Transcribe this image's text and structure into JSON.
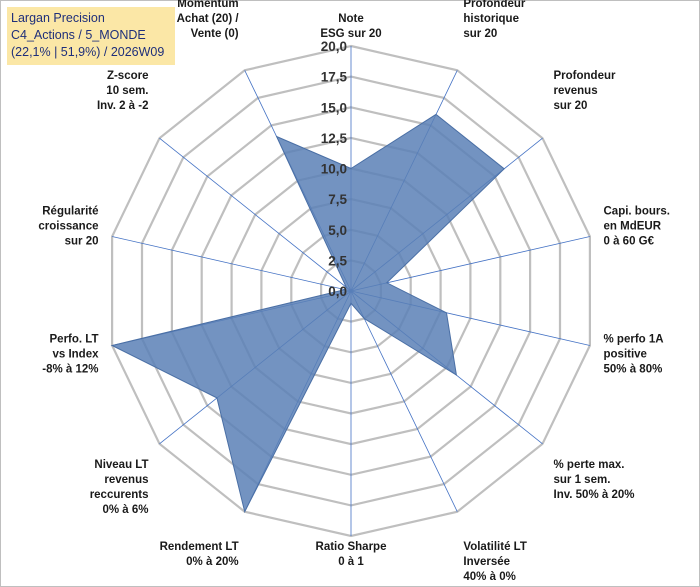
{
  "title_box": {
    "line1": "Largan Precision",
    "line2": "C4_Actions / 5_MONDE",
    "line3": "(22,1% | 51,9%) / 2026W09"
  },
  "chart_data": {
    "type": "radar",
    "title": "Largan Precision",
    "subtitle": "C4_Actions / 5_MONDE (22,1% | 51,9%) / 2026W09",
    "rlim": [
      0,
      20
    ],
    "ticks": [
      "0,0",
      "2,5",
      "5,0",
      "7,5",
      "10,0",
      "12,5",
      "15,0",
      "17,5",
      "20,0"
    ],
    "tick_values": [
      0,
      2.5,
      5,
      7.5,
      10,
      12.5,
      15,
      17.5,
      20
    ],
    "axes": [
      {
        "label": [
          "Note",
          "ESG sur 20"
        ],
        "value": 10
      },
      {
        "label": [
          "Profondeur",
          "historique",
          "sur 20"
        ],
        "value": 16
      },
      {
        "label": [
          "Profondeur",
          "revenus",
          "sur 20"
        ],
        "value": 16
      },
      {
        "label": [
          "Capi. bours.",
          "en MdEUR",
          "0 à 60 G€"
        ],
        "value": 3
      },
      {
        "label": [
          "% perfo 1A",
          "positive",
          "50% à 80%"
        ],
        "value": 8
      },
      {
        "label": [
          "% perte max.",
          "sur 1 sem.",
          "Inv. 50% à 20%"
        ],
        "value": 11
      },
      {
        "label": [
          "Volatilité LT",
          "Inversée",
          "40% à 0%"
        ],
        "value": 2.5
      },
      {
        "label": [
          "Ratio Sharpe",
          "0 à 1"
        ],
        "value": 1
      },
      {
        "label": [
          "Rendement LT",
          "0% à 20%"
        ],
        "value": 20
      },
      {
        "label": [
          "Niveau LT",
          "revenus",
          "reccurents",
          "0% à 6%"
        ],
        "value": 14
      },
      {
        "label": [
          "Perfo. LT",
          "vs Index",
          "-8% à 12%"
        ],
        "value": 20
      },
      {
        "label": [
          "Régularité",
          "croissance",
          "sur 20"
        ],
        "value": 0.5
      },
      {
        "label": [
          "Z-score",
          "10 sem.",
          "Inv. 2 à -2"
        ],
        "value": 0.5
      },
      {
        "label": [
          "Momentum",
          "Achat (20) /",
          "Vente (0)"
        ],
        "value": 14
      }
    ],
    "colors": {
      "fill": "#5b80b6",
      "stroke": "#4a6fa5",
      "grid": "#bfbfbf",
      "spoke": "#4472c4"
    },
    "legend": "none"
  }
}
